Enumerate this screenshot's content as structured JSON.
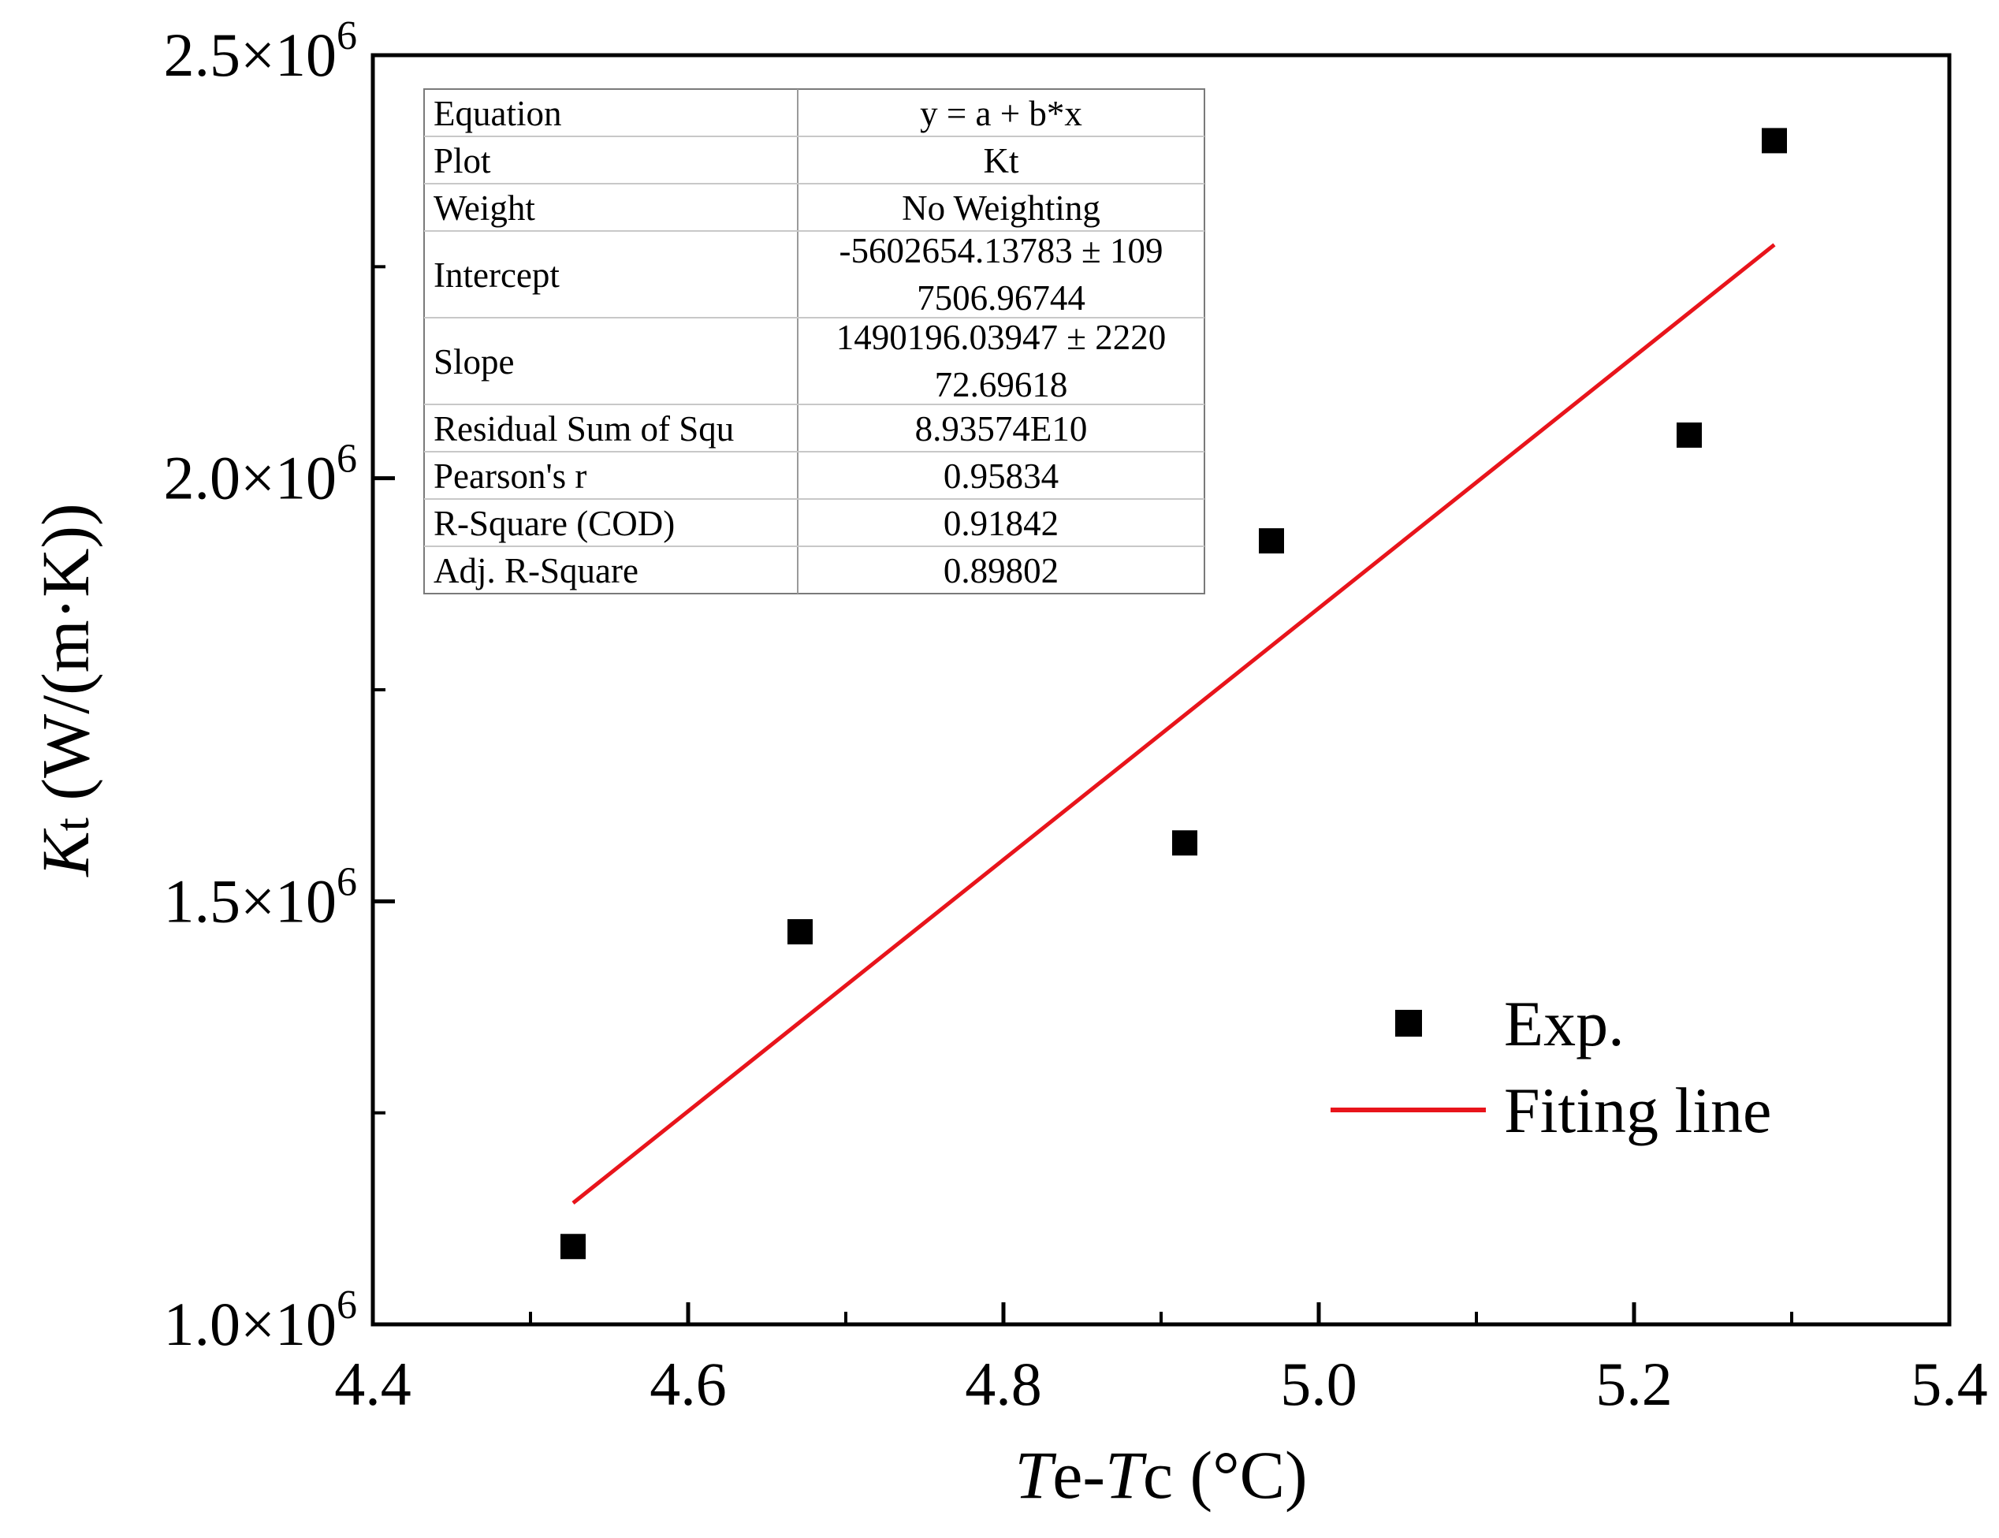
{
  "chart_data": {
    "type": "scatter",
    "title": "",
    "xlabel": {
      "parts": [
        {
          "text": "T",
          "italic": true
        },
        {
          "text": "e-",
          "italic": false
        },
        {
          "text": "T",
          "italic": true
        },
        {
          "text": "c (°C)",
          "italic": false
        }
      ]
    },
    "ylabel": {
      "parts": [
        {
          "text": "K",
          "italic": true
        },
        {
          "text": "t",
          "italic": false,
          "small": true
        },
        {
          "text": " (W/(m·K))",
          "italic": false
        }
      ]
    },
    "xlim": [
      4.4,
      5.4
    ],
    "ylim": [
      1000000,
      2500000
    ],
    "x_ticks": [
      {
        "value": 4.4,
        "label": "4.4"
      },
      {
        "value": 4.6,
        "label": "4.6"
      },
      {
        "value": 4.8,
        "label": "4.8"
      },
      {
        "value": 5.0,
        "label": "5.0"
      },
      {
        "value": 5.2,
        "label": "5.2"
      },
      {
        "value": 5.4,
        "label": "5.4"
      }
    ],
    "x_minor_ticks": [
      4.5,
      4.7,
      4.9,
      5.1,
      5.3
    ],
    "y_ticks": [
      {
        "value": 1000000,
        "mantissa": "1.0",
        "times": "×10",
        "exp": "6"
      },
      {
        "value": 1500000,
        "mantissa": "1.5",
        "times": "×10",
        "exp": "6"
      },
      {
        "value": 2000000,
        "mantissa": "2.0",
        "times": "×10",
        "exp": "6"
      },
      {
        "value": 2500000,
        "mantissa": "2.5",
        "times": "×10",
        "exp": "6"
      }
    ],
    "y_minor_ticks": [
      1250000,
      1750000,
      2250000
    ],
    "series": [
      {
        "name": "Exp.",
        "kind": "scatter",
        "marker": "square",
        "color": "#000000",
        "x": [
          4.527,
          4.671,
          4.915,
          4.97,
          5.235,
          5.289
        ],
        "y": [
          1092000,
          1464000,
          1569000,
          1926000,
          2051000,
          2399000
        ]
      },
      {
        "name": "Fiting line",
        "kind": "line",
        "color": "#e8141b",
        "x": [
          4.527,
          5.289
        ],
        "y": [
          1143400,
          2276000
        ]
      }
    ],
    "legend": {
      "position": "lower-right"
    },
    "stats_table": {
      "rows": [
        {
          "label": "Equation",
          "value": [
            "y = a + b*x"
          ]
        },
        {
          "label": "Plot",
          "value": [
            "Kt"
          ]
        },
        {
          "label": "Weight",
          "value": [
            "No Weighting"
          ]
        },
        {
          "label": "Intercept",
          "value": [
            "-5602654.13783 ± 109",
            "7506.96744"
          ]
        },
        {
          "label": "Slope",
          "value": [
            "1490196.03947 ± 2220",
            "72.69618"
          ]
        },
        {
          "label": "Residual Sum of Squ",
          "value": [
            "8.93574E10"
          ]
        },
        {
          "label": "Pearson's r",
          "value": [
            "0.95834"
          ]
        },
        {
          "label": "R-Square (COD)",
          "value": [
            "0.91842"
          ]
        },
        {
          "label": "Adj. R-Square",
          "value": [
            "0.89802"
          ]
        }
      ]
    }
  }
}
